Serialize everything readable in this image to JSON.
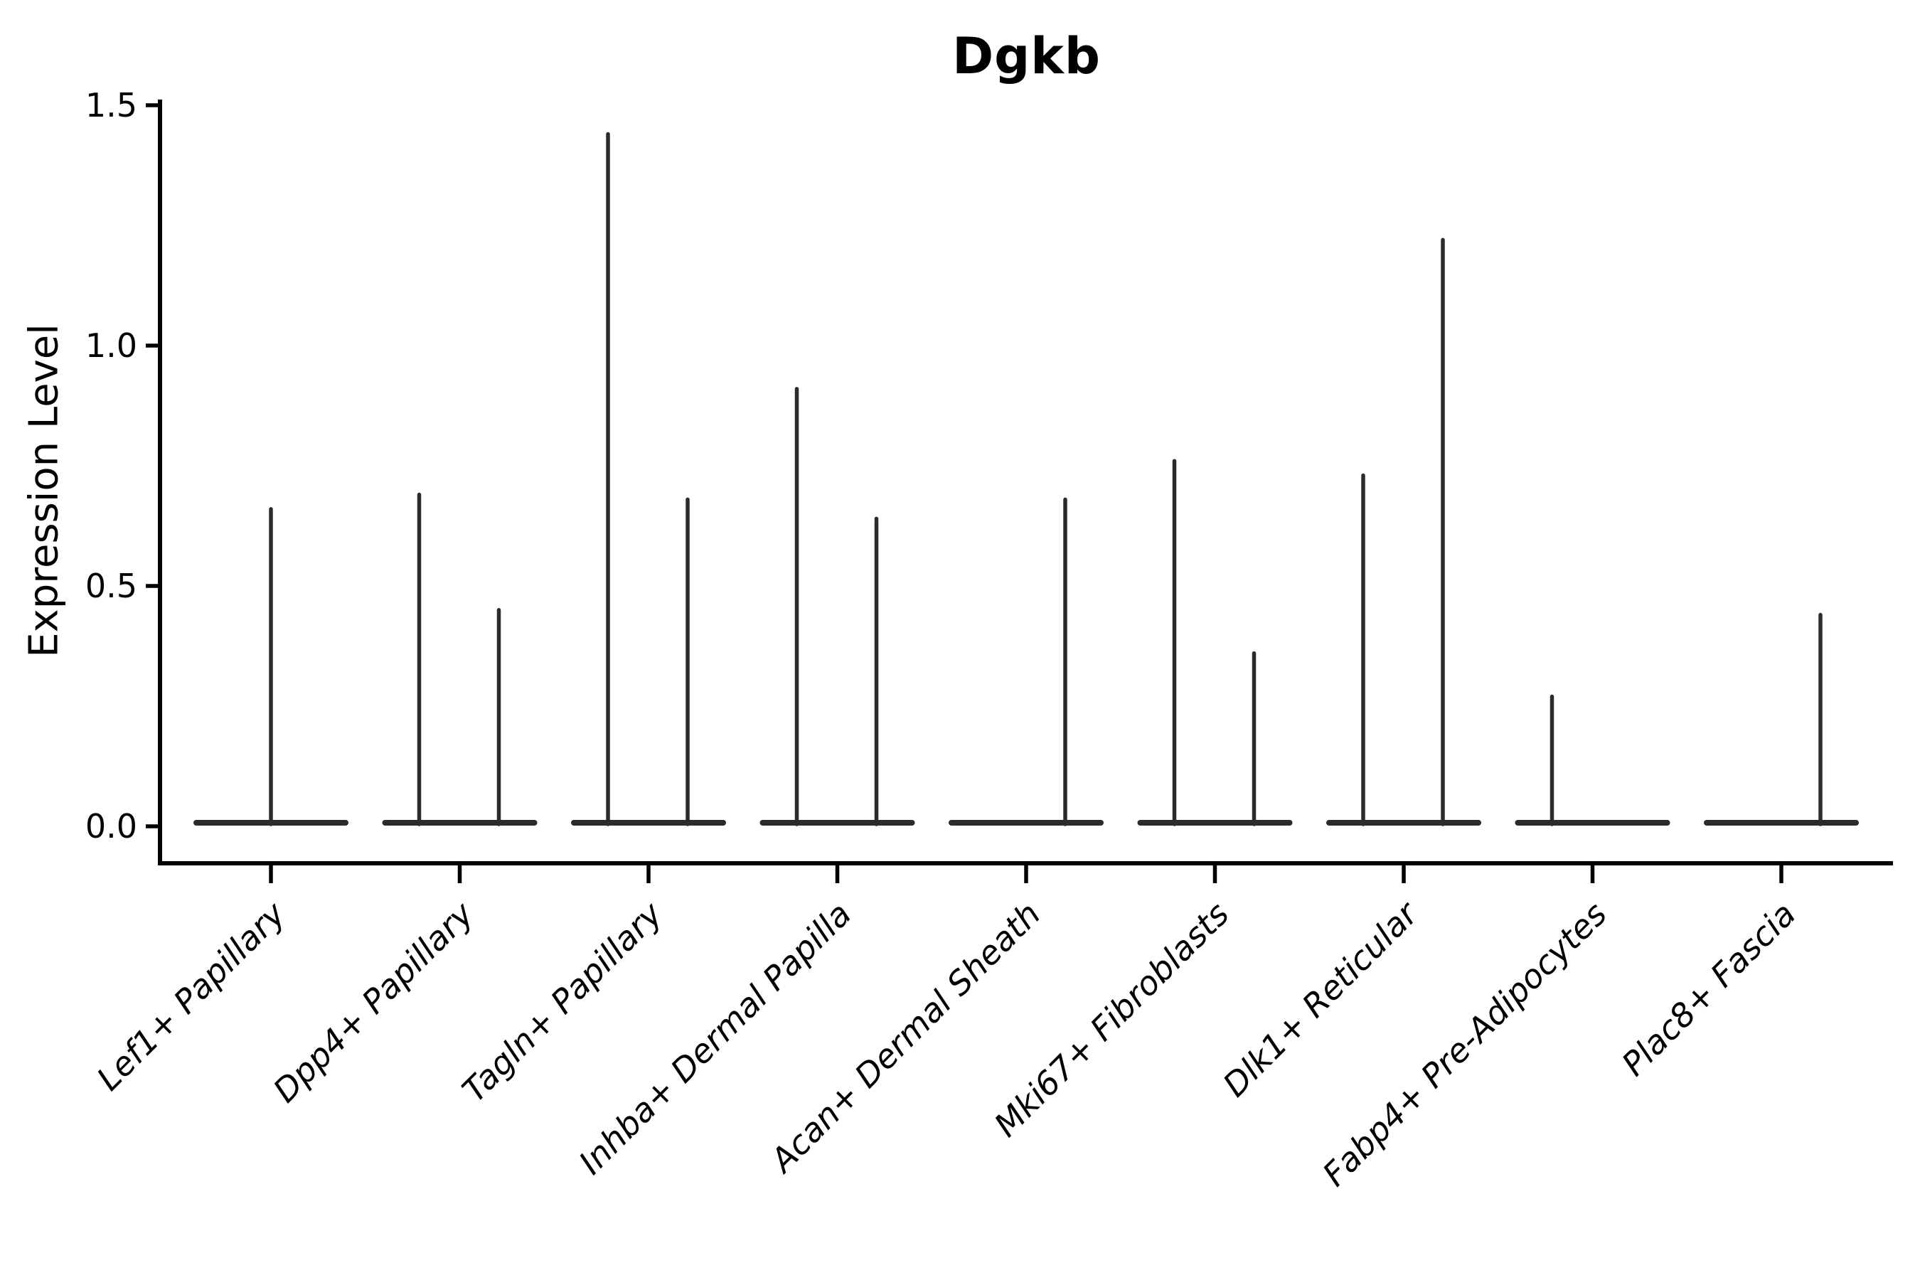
{
  "chart_data": {
    "type": "violin",
    "title": "Dgkb",
    "ylabel": "Expression Level",
    "xlabel": "",
    "ylim": [
      0.0,
      1.5
    ],
    "grid": false,
    "legend": "none",
    "violin_color": "#2b2b2b",
    "axis_color": "#000000",
    "yticks": [
      {
        "value": 0.0,
        "label": "0.0"
      },
      {
        "value": 0.5,
        "label": "0.5"
      },
      {
        "value": 1.0,
        "label": "1.0"
      },
      {
        "value": 1.5,
        "label": "1.5"
      }
    ],
    "categories": [
      "Lef1+ Papillary",
      "Dpp4+ Papillary",
      "Tagln+ Papillary",
      "Inhba+ Dermal Papilla",
      "Acan+ Dermal Sheath",
      "Mki67+ Fibroblasts",
      "Dlk1+ Reticular",
      "Fabp4+ Pre-Adipocytes",
      "Plac8+ Fascia"
    ],
    "series": [
      {
        "category": "Lef1+ Papillary",
        "baseline": 0.0,
        "spikes": [
          {
            "pos": "center",
            "max": 0.66
          }
        ]
      },
      {
        "category": "Dpp4+ Papillary",
        "baseline": 0.0,
        "spikes": [
          {
            "pos": "left",
            "max": 0.69
          },
          {
            "pos": "right",
            "max": 0.45
          }
        ]
      },
      {
        "category": "Tagln+ Papillary",
        "baseline": 0.0,
        "spikes": [
          {
            "pos": "left",
            "max": 1.44
          },
          {
            "pos": "right",
            "max": 0.68
          }
        ]
      },
      {
        "category": "Inhba+ Dermal Papilla",
        "baseline": 0.0,
        "spikes": [
          {
            "pos": "left",
            "max": 0.91
          },
          {
            "pos": "right",
            "max": 0.64
          }
        ]
      },
      {
        "category": "Acan+ Dermal Sheath",
        "baseline": 0.0,
        "spikes": [
          {
            "pos": "right",
            "max": 0.68
          }
        ]
      },
      {
        "category": "Mki67+ Fibroblasts",
        "baseline": 0.0,
        "spikes": [
          {
            "pos": "left",
            "max": 0.76
          },
          {
            "pos": "right",
            "max": 0.36
          }
        ]
      },
      {
        "category": "Dlk1+ Reticular",
        "baseline": 0.0,
        "spikes": [
          {
            "pos": "left",
            "max": 0.73
          },
          {
            "pos": "right",
            "max": 1.22
          }
        ]
      },
      {
        "category": "Fabp4+ Pre-Adipocytes",
        "baseline": 0.0,
        "spikes": [
          {
            "pos": "left",
            "max": 0.27
          }
        ]
      },
      {
        "category": "Plac8+ Fascia",
        "baseline": 0.0,
        "spikes": [
          {
            "pos": "right",
            "max": 0.44
          }
        ]
      }
    ]
  }
}
